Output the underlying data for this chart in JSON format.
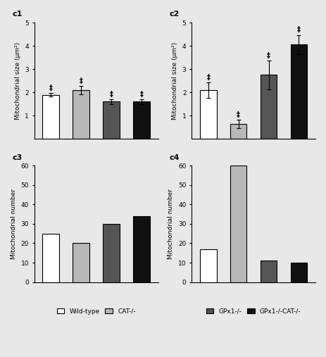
{
  "c1": {
    "title": "c1",
    "ylabel": "Mitochondrial size (μm²)",
    "ylim": [
      0,
      5
    ],
    "yticks": [
      1,
      2,
      3,
      4,
      5
    ],
    "values": [
      1.9,
      2.1,
      1.6,
      1.6
    ],
    "errors": [
      0.08,
      0.18,
      0.1,
      0.1
    ],
    "colors": [
      "#ffffff",
      "#b8b8b8",
      "#555555",
      "#111111"
    ],
    "has_error": true
  },
  "c2": {
    "title": "c2",
    "ylabel": "Mitochondrial size (μm²)",
    "ylim": [
      0,
      5
    ],
    "yticks": [
      1,
      2,
      3,
      4,
      5
    ],
    "values": [
      2.1,
      0.65,
      2.75,
      4.05
    ],
    "errors": [
      0.32,
      0.18,
      0.62,
      0.42
    ],
    "colors": [
      "#ffffff",
      "#b8b8b8",
      "#555555",
      "#111111"
    ],
    "has_error": true
  },
  "c3": {
    "title": "c3",
    "ylabel": "Mitochondrial number",
    "ylim": [
      0,
      60
    ],
    "yticks": [
      0,
      10,
      20,
      30,
      40,
      50,
      60
    ],
    "values": [
      25,
      20,
      30,
      34
    ],
    "errors": [
      0,
      0,
      0,
      0
    ],
    "colors": [
      "#ffffff",
      "#b8b8b8",
      "#555555",
      "#111111"
    ],
    "has_error": false
  },
  "c4": {
    "title": "c4",
    "ylabel": "Mitochondrial number",
    "ylim": [
      0,
      60
    ],
    "yticks": [
      0,
      10,
      20,
      30,
      40,
      50,
      60
    ],
    "values": [
      17,
      60,
      11,
      10
    ],
    "errors": [
      0,
      0,
      0,
      0
    ],
    "colors": [
      "#ffffff",
      "#b8b8b8",
      "#555555",
      "#111111"
    ],
    "has_error": false
  },
  "legend_labels_left": [
    "Wild-type",
    "CAT-/-"
  ],
  "legend_labels_right": [
    "GPx1-/-",
    "GPx1-/-CAT-/-"
  ],
  "legend_colors_left": [
    "#ffffff",
    "#b8b8b8"
  ],
  "legend_colors_right": [
    "#555555",
    "#111111"
  ],
  "bar_width": 0.55,
  "edgecolor": "#000000",
  "error_capsize": 2,
  "dagger_symbol": "‡",
  "figsize": [
    4.63,
    5.07
  ],
  "dpi": 100,
  "bg_color": "#f0f0f0"
}
